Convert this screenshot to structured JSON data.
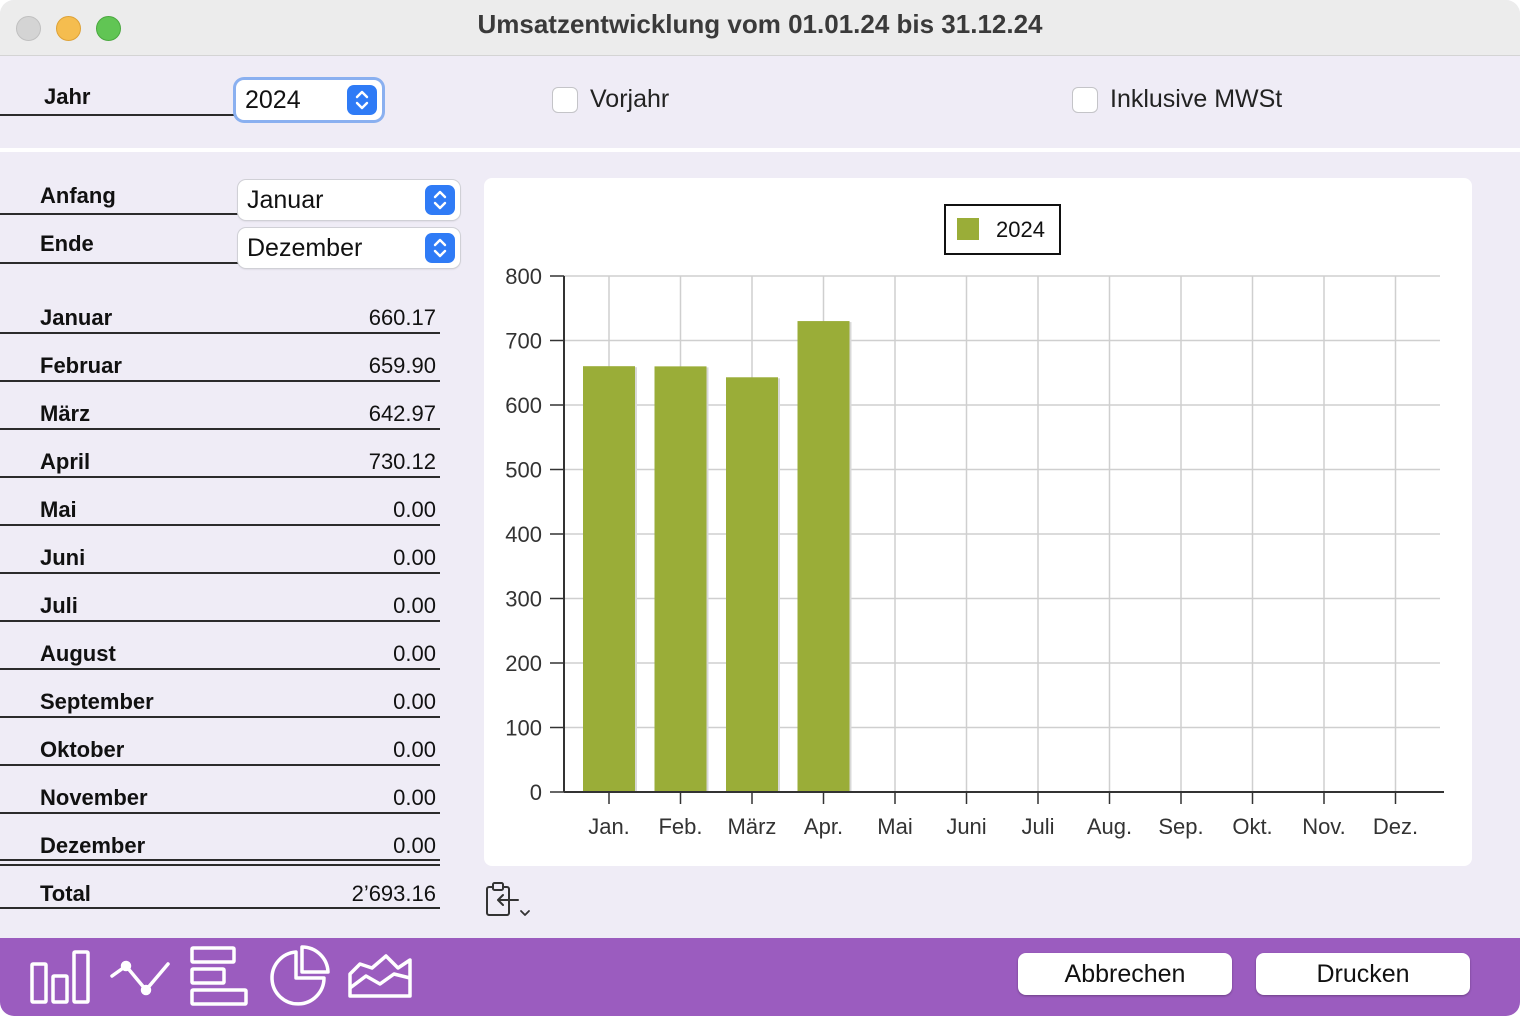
{
  "window": {
    "title": "Umsatzentwicklung vom 01.01.24 bis 31.12.24"
  },
  "top": {
    "jahr_label": "Jahr",
    "jahr_value": "2024",
    "vorjahr_label": "Vorjahr",
    "vorjahr_checked": false,
    "mwst_label": "Inklusive MWSt",
    "mwst_checked": false
  },
  "range": {
    "anfang_label": "Anfang",
    "anfang_value": "Januar",
    "ende_label": "Ende",
    "ende_value": "Dezember"
  },
  "months": [
    {
      "label": "Januar",
      "value": "660.17"
    },
    {
      "label": "Februar",
      "value": "659.90"
    },
    {
      "label": "März",
      "value": "642.97"
    },
    {
      "label": "April",
      "value": "730.12"
    },
    {
      "label": "Mai",
      "value": "0.00"
    },
    {
      "label": "Juni",
      "value": "0.00"
    },
    {
      "label": "Juli",
      "value": "0.00"
    },
    {
      "label": "August",
      "value": "0.00"
    },
    {
      "label": "September",
      "value": "0.00"
    },
    {
      "label": "Oktober",
      "value": "0.00"
    },
    {
      "label": "November",
      "value": "0.00"
    },
    {
      "label": "Dezember",
      "value": "0.00"
    }
  ],
  "total": {
    "label": "Total",
    "value": "2’693.16"
  },
  "buttons": {
    "cancel": "Abbrechen",
    "print": "Drucken"
  },
  "icons": [
    "bar-chart-icon",
    "line-chart-icon",
    "horizontal-bar-icon",
    "pie-chart-icon",
    "area-chart-icon",
    "clipboard-export-icon"
  ],
  "colors": {
    "bar": "#9aad38",
    "accent": "#2f7bf6",
    "bottom_bar": "#9b5cbf",
    "close": "#d4d4d4",
    "minimize": "#f5bd4f",
    "zoom": "#61c554"
  },
  "chart_data": {
    "type": "bar",
    "categories": [
      "Jan.",
      "Feb.",
      "März",
      "Apr.",
      "Mai",
      "Juni",
      "Juli",
      "Aug.",
      "Sep.",
      "Okt.",
      "Nov.",
      "Dez."
    ],
    "series": [
      {
        "name": "2024",
        "values": [
          660.17,
          659.9,
          642.97,
          730.12,
          0,
          0,
          0,
          0,
          0,
          0,
          0,
          0
        ]
      }
    ],
    "yticks": [
      "0",
      "100",
      "200",
      "300",
      "400",
      "500",
      "600",
      "700",
      "800"
    ],
    "ylim": [
      0,
      800
    ],
    "grid": true,
    "legend": "top-center"
  }
}
